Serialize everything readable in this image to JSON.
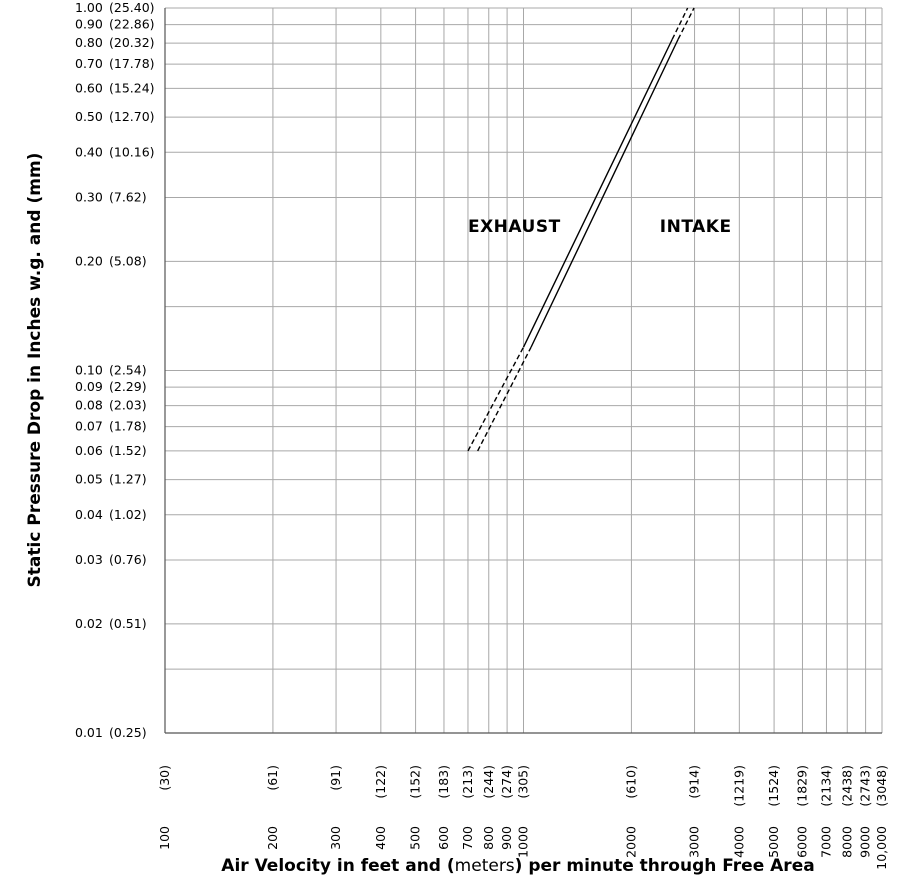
{
  "chart_data": {
    "type": "line",
    "ylabel": "Static Pressure Drop in Inches w.g. and (mm)",
    "xlabel": {
      "before": "Air Velocity in feet and (",
      "unit": "meters",
      "after": ") per minute through Free Area"
    },
    "x_scale": "log",
    "y_scale": "log",
    "xlim": [
      100,
      10000
    ],
    "ylim": [
      0.01,
      1.0
    ],
    "grid": true,
    "x_ticks": [
      {
        "value": 100,
        "label": "100",
        "metric": "(30)"
      },
      {
        "value": 200,
        "label": "200",
        "metric": "(61)"
      },
      {
        "value": 300,
        "label": "300",
        "metric": "(91)"
      },
      {
        "value": 400,
        "label": "400",
        "metric": "(122)"
      },
      {
        "value": 500,
        "label": "500",
        "metric": "(152)"
      },
      {
        "value": 600,
        "label": "600",
        "metric": "(183)"
      },
      {
        "value": 700,
        "label": "700",
        "metric": "(213)"
      },
      {
        "value": 800,
        "label": "800",
        "metric": "(244)"
      },
      {
        "value": 900,
        "label": "900",
        "metric": "(274)"
      },
      {
        "value": 1000,
        "label": "1000",
        "metric": "(305)"
      },
      {
        "value": 2000,
        "label": "2000",
        "metric": "(610)"
      },
      {
        "value": 3000,
        "label": "3000",
        "metric": "(914)"
      },
      {
        "value": 4000,
        "label": "4000",
        "metric": "(1219)"
      },
      {
        "value": 5000,
        "label": "5000",
        "metric": "(1524)"
      },
      {
        "value": 6000,
        "label": "6000",
        "metric": "(1829)"
      },
      {
        "value": 7000,
        "label": "7000",
        "metric": "(2134)"
      },
      {
        "value": 8000,
        "label": "8000",
        "metric": "(2438)"
      },
      {
        "value": 9000,
        "label": "9000",
        "metric": "(2743)"
      },
      {
        "value": 10000,
        "label": "10,000",
        "metric": "(3048)"
      }
    ],
    "y_ticks": [
      {
        "value": 1.0,
        "label": "1.00",
        "metric": "(25.40)"
      },
      {
        "value": 0.9,
        "label": "0.90",
        "metric": "(22.86)"
      },
      {
        "value": 0.8,
        "label": "0.80",
        "metric": "(20.32)"
      },
      {
        "value": 0.7,
        "label": "0.70",
        "metric": "(17.78)"
      },
      {
        "value": 0.6,
        "label": "0.60",
        "metric": "(15.24)"
      },
      {
        "value": 0.5,
        "label": "0.50",
        "metric": "(12.70)"
      },
      {
        "value": 0.4,
        "label": "0.40",
        "metric": "(10.16)"
      },
      {
        "value": 0.3,
        "label": "0.30",
        "metric": "(7.62)"
      },
      {
        "value": 0.2,
        "label": "0.20",
        "metric": "(5.08)"
      },
      {
        "value": 0.15,
        "label": "",
        "metric": ""
      },
      {
        "value": 0.1,
        "label": "0.10",
        "metric": "(2.54)"
      },
      {
        "value": 0.09,
        "label": "0.09",
        "metric": "(2.29)"
      },
      {
        "value": 0.08,
        "label": "0.08",
        "metric": "(2.03)"
      },
      {
        "value": 0.07,
        "label": "0.07",
        "metric": "(1.78)"
      },
      {
        "value": 0.06,
        "label": "0.06",
        "metric": "(1.52)"
      },
      {
        "value": 0.05,
        "label": "0.05",
        "metric": "(1.27)"
      },
      {
        "value": 0.04,
        "label": "0.04",
        "metric": "(1.02)"
      },
      {
        "value": 0.03,
        "label": "0.03",
        "metric": "(0.76)"
      },
      {
        "value": 0.02,
        "label": "0.02",
        "metric": "(0.51)"
      },
      {
        "value": 0.015,
        "label": "",
        "metric": ""
      },
      {
        "value": 0.01,
        "label": "0.01",
        "metric": "(0.25)"
      }
    ],
    "series": [
      {
        "name": "EXHAUST",
        "color": "#000000",
        "dashed_low": {
          "from": [
            700,
            0.06
          ],
          "to": [
            1000,
            0.116
          ]
        },
        "solid": {
          "from": [
            1000,
            0.116
          ],
          "to": [
            2600,
            0.82
          ]
        },
        "dashed_high": {
          "from": [
            2600,
            0.82
          ],
          "to": [
            2870,
            1.0
          ]
        }
      },
      {
        "name": "INTAKE",
        "color": "#000000",
        "dashed_low": {
          "from": [
            745,
            0.06
          ],
          "to": [
            1050,
            0.116
          ]
        },
        "solid": {
          "from": [
            1050,
            0.116
          ],
          "to": [
            2700,
            0.82
          ]
        },
        "dashed_high": {
          "from": [
            2700,
            0.82
          ],
          "to": [
            2990,
            1.0
          ]
        }
      }
    ],
    "annotations": [
      {
        "text": "EXHAUST",
        "x": 700,
        "y": 0.25
      },
      {
        "text": "INTAKE",
        "x": 2400,
        "y": 0.25
      }
    ]
  }
}
